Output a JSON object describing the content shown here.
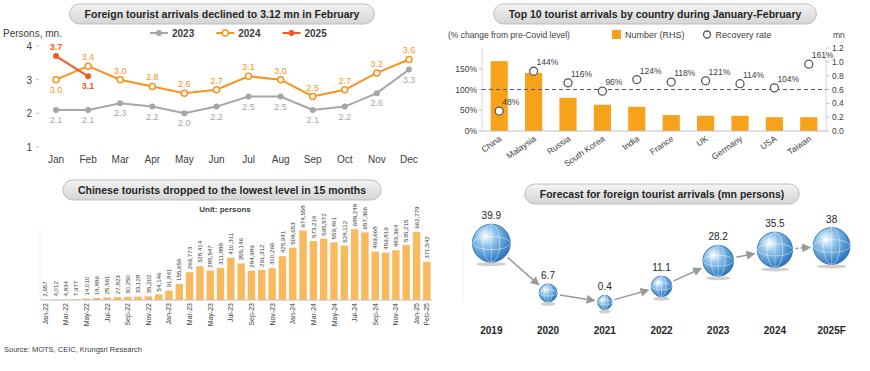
{
  "chart_data": [
    {
      "type": "line",
      "title": "Foreign tourist arrivals declined to 3.12 mn in February",
      "ylabel": "Persons, mn.",
      "categories": [
        "Jan",
        "Feb",
        "Mar",
        "Apr",
        "May",
        "Jun",
        "Jul",
        "Aug",
        "Sep",
        "Oct",
        "Nov",
        "Dec"
      ],
      "series": [
        {
          "name": "2023",
          "color": "#a6a6a6",
          "marker": "circle",
          "line_style": "solid",
          "values": [
            2.1,
            2.1,
            2.3,
            2.2,
            2.0,
            2.2,
            2.5,
            2.5,
            2.1,
            2.2,
            2.6,
            3.3
          ],
          "value_labels": [
            "2.1",
            "2.1",
            "2.3",
            "2.2",
            "2.0",
            "2.2",
            "2.5",
            "2.5",
            "2.1",
            "2.2",
            "2.6",
            "3.3"
          ]
        },
        {
          "name": "2024",
          "color": "#f7941d",
          "marker": "circle-open",
          "line_style": "solid",
          "values": [
            3.0,
            3.4,
            3.0,
            2.8,
            2.6,
            2.7,
            3.1,
            3.0,
            2.5,
            2.7,
            3.2,
            3.6
          ],
          "value_labels": [
            "3.0",
            "3.4",
            "3.0",
            "2.8",
            "2.6",
            "2.7",
            "3.1",
            "3.0",
            "2.5",
            "2.7",
            "3.2",
            "3.6"
          ]
        },
        {
          "name": "2025",
          "color": "#f15a24",
          "marker": "circle",
          "line_style": "solid",
          "values": [
            3.7,
            3.1,
            null,
            null,
            null,
            null,
            null,
            null,
            null,
            null,
            null,
            null
          ],
          "value_labels": [
            "3.7",
            "3.1",
            null,
            null,
            null,
            null,
            null,
            null,
            null,
            null,
            null,
            null
          ]
        }
      ],
      "ylim": [
        1,
        4
      ],
      "yticks": [
        1,
        2,
        3,
        4
      ],
      "data_labels": true,
      "legend": "top"
    },
    {
      "type": "bar",
      "title": "Chinese tourists dropped to the lowest level in 15 months",
      "subtitle": "Unit: persons",
      "categories": [
        "Jan-22",
        null,
        "Mar-22",
        null,
        "May-22",
        null,
        "Jul-22",
        null,
        "Sep-22",
        null,
        "Nov-22",
        null,
        "Jan-23",
        null,
        "Mar-23",
        null,
        "May-23",
        null,
        "Jul-23",
        null,
        "Sep-23",
        null,
        "Nov-23",
        null,
        "Jan-24",
        null,
        "Mar-24",
        null,
        "May-24",
        null,
        "Jul-24",
        null,
        "Sep-24",
        null,
        "Nov-24",
        null,
        "Jan-25",
        "Feb-25"
      ],
      "values": [
        2657,
        4012,
        4834,
        7977,
        14010,
        18886,
        25561,
        27823,
        30250,
        33128,
        35202,
        54146,
        91841,
        155656,
        269773,
        328414,
        285547,
        311888,
        410311,
        355146,
        284989,
        291312,
        310266,
        425941,
        508653,
        674558,
        573216,
        595572,
        559461,
        528112,
        688248,
        657366,
        469668,
        459819,
        483364,
        535215,
        662779,
        371542
      ],
      "value_labels": [
        "2,657",
        "4,012",
        "4,834",
        "7,977",
        "14,010",
        "18,886",
        "25,561",
        "27,823",
        "30,250",
        "33,128",
        "35,202",
        "54,146",
        "91,841",
        "155,656",
        "269,773",
        "328,414",
        "285,547",
        "311,888",
        "410,311",
        "355,146",
        "284,989",
        "291,312",
        "310,266",
        "425,941",
        "508,653",
        "674,558",
        "573,216",
        "595,572",
        "559,461",
        "528,112",
        "688,248",
        "657,366",
        "469,668",
        "459,819",
        "483,364",
        "535,215",
        "662,779",
        "371,542"
      ],
      "color": "#f9b95c",
      "ylim": [
        0,
        700000
      ],
      "data_labels": true,
      "tick_labels": "x"
    },
    {
      "type": "bar",
      "title": "Top 10 tourist arrivals by country during January-February",
      "ylabel": "(% change from pre-Covid level)",
      "y2label": "mn",
      "categories": [
        "China",
        "Malaysia",
        "Russia",
        "South Korea",
        "India",
        "France",
        "UK",
        "Germany",
        "USA",
        "Taiwan"
      ],
      "series": [
        {
          "name": "Number (RHS)",
          "type": "bar",
          "axis": "y2",
          "color": "#f7a21b",
          "values": [
            1.01,
            0.84,
            0.48,
            0.38,
            0.35,
            0.23,
            0.22,
            0.22,
            0.2,
            0.2
          ]
        },
        {
          "name": "Recovery rate",
          "type": "scatter",
          "marker": "circle",
          "color": "#595959",
          "data_labels": true,
          "values": [
            48,
            144,
            116,
            96,
            124,
            118,
            121,
            114,
            104,
            161
          ],
          "value_labels": [
            "48%",
            "144%",
            "116%",
            "96%",
            "124%",
            "118%",
            "121%",
            "114%",
            "104%",
            "161%"
          ]
        }
      ],
      "ylim": [
        0,
        200
      ],
      "yticks": [
        {
          "value": 0,
          "label": "0%"
        },
        {
          "value": 50,
          "label": "50%"
        },
        {
          "value": 100,
          "label": "100%"
        },
        {
          "value": 150,
          "label": "150%"
        }
      ],
      "y2lim": [
        0,
        1.2
      ],
      "y2ticks": [
        {
          "value": 0,
          "label": "0.0"
        },
        0.2,
        0.4,
        0.6,
        0.8,
        {
          "value": 1,
          "label": "1.0"
        },
        1.2
      ],
      "reference_line": 100,
      "legend": "top"
    },
    {
      "type": "line",
      "title": "Forecast for foreign tourist arrivals (mn persons)",
      "categories": [
        "2019",
        "2020",
        "2021",
        "2022",
        "2023",
        "2024",
        "2025F"
      ],
      "values": [
        39.9,
        6.7,
        0.4,
        11.1,
        28.2,
        35.5,
        38
      ],
      "marker": "globe",
      "ylim": [
        0,
        40
      ],
      "data_labels": true,
      "tick_labels": "x"
    }
  ],
  "source": "Source: MOTS, CEIC, Krungsri Research"
}
